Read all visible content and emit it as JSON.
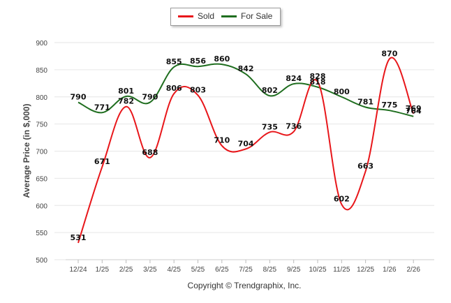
{
  "chart_data": {
    "type": "line",
    "title": "",
    "xlabel": "",
    "ylabel": "Average Price (in $,000)",
    "footer": "Copyright © Trendgraphix, Inc.",
    "categories": [
      "12/24",
      "1/25",
      "2/25",
      "3/25",
      "4/25",
      "5/25",
      "6/25",
      "7/25",
      "8/25",
      "9/25",
      "10/25",
      "11/25",
      "12/25",
      "1/26",
      "2/26"
    ],
    "ylim": [
      500,
      900
    ],
    "yticks": [
      500,
      550,
      600,
      650,
      700,
      750,
      800,
      850,
      900
    ],
    "grid": true,
    "legend_position": "top-center",
    "series": [
      {
        "name": "Sold",
        "color": "#e8161a",
        "values": [
          531,
          671,
          782,
          688,
          806,
          803,
          710,
          704,
          735,
          736,
          828,
          602,
          663,
          870,
          769
        ]
      },
      {
        "name": "For Sale",
        "color": "#1f6e1f",
        "values": [
          790,
          771,
          801,
          790,
          855,
          856,
          860,
          842,
          802,
          824,
          818,
          800,
          781,
          775,
          764
        ]
      }
    ]
  }
}
